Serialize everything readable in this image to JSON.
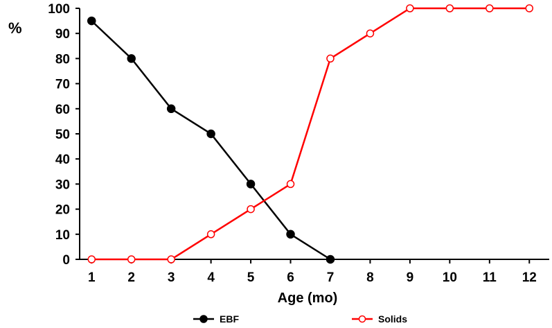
{
  "chart_data": {
    "type": "line",
    "x": [
      1,
      2,
      3,
      4,
      5,
      6,
      7,
      8,
      9,
      10,
      11,
      12
    ],
    "x_tick_labels": [
      "1",
      "2",
      "3",
      "4",
      "5",
      "6",
      "7",
      "8",
      "9",
      "10",
      "11",
      "12"
    ],
    "y_tick_labels": [
      "0",
      "10",
      "20",
      "30",
      "40",
      "50",
      "60",
      "70",
      "80",
      "90",
      "100"
    ],
    "xlabel": "Age (mo)",
    "ylabel": "%",
    "xlim": [
      0.7,
      12.5
    ],
    "ylim": [
      0,
      100
    ],
    "grid": false,
    "legend_position": "bottom",
    "series": [
      {
        "name": "EBF",
        "color": "#000000",
        "marker": "filled-circle",
        "x": [
          1,
          2,
          3,
          4,
          5,
          6,
          7
        ],
        "values": [
          95,
          80,
          60,
          50,
          30,
          10,
          0
        ]
      },
      {
        "name": "Solids",
        "color": "#ff0000",
        "marker": "open-circle",
        "x": [
          1,
          2,
          3,
          4,
          5,
          6,
          7,
          8,
          9,
          10,
          11,
          12
        ],
        "values": [
          0,
          0,
          0,
          10,
          20,
          30,
          80,
          90,
          100,
          100,
          100,
          100
        ]
      }
    ]
  }
}
